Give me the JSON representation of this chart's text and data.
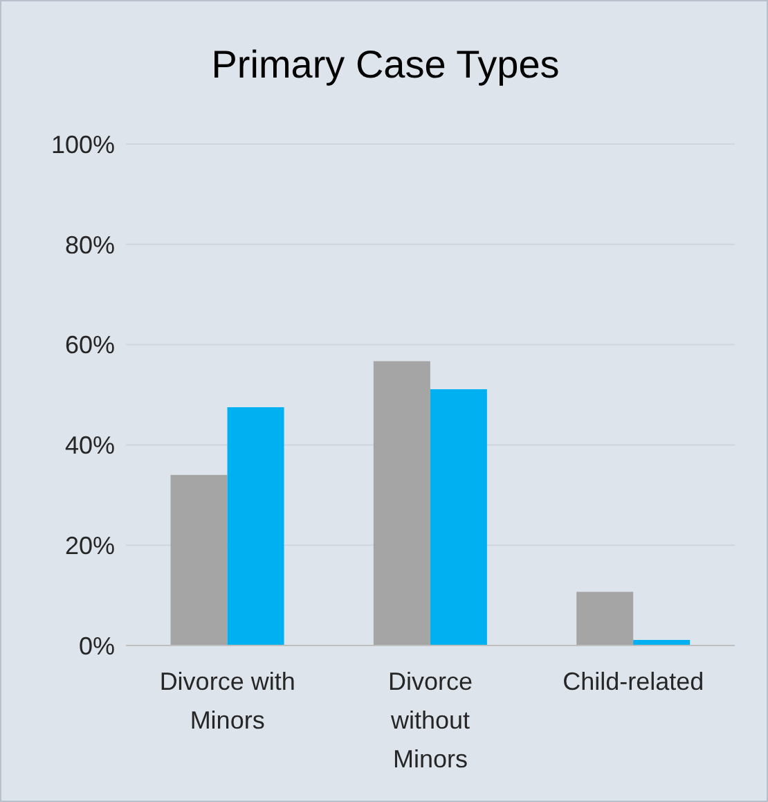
{
  "chart_data": {
    "type": "bar",
    "title": "Primary Case Types",
    "categories": [
      "Divorce with Minors",
      "Divorce without Minors",
      "Child-related"
    ],
    "series": [
      {
        "color": "#a5a5a5",
        "values": [
          34,
          56.7,
          10.7
        ]
      },
      {
        "color": "#00b0f0",
        "values": [
          47.5,
          51.1,
          1.1
        ]
      }
    ],
    "ylim": [
      0,
      100
    ],
    "yticks": [
      {
        "value": 0,
        "label": "0%"
      },
      {
        "value": 20,
        "label": "20%"
      },
      {
        "value": 40,
        "label": "40%"
      },
      {
        "value": 60,
        "label": "60%"
      },
      {
        "value": 80,
        "label": "80%"
      },
      {
        "value": 100,
        "label": "100%"
      }
    ],
    "grid": "y",
    "legend": false
  }
}
